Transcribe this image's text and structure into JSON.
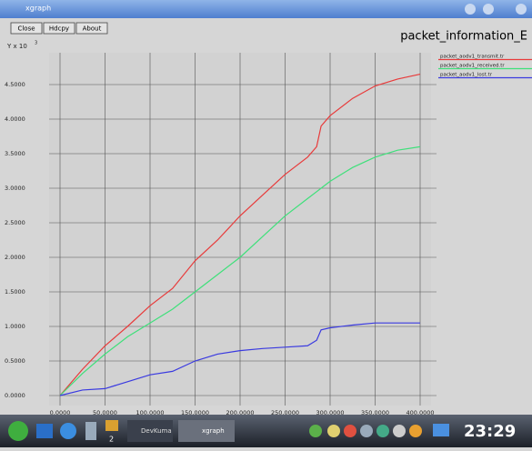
{
  "window": {
    "title": "xgraph",
    "buttons": [
      "Close",
      "Hdcpy",
      "About"
    ]
  },
  "chart_data": {
    "type": "line",
    "title": "packet_information_E",
    "ylabel": "Y x 10",
    "ylabel_exponent": "3",
    "x": [
      0,
      25,
      50,
      75,
      100,
      125,
      150,
      175,
      200,
      225,
      250,
      275,
      285,
      290,
      300,
      325,
      350,
      375,
      400
    ],
    "series": [
      {
        "name": "packet_aodv1_transmit.tr",
        "color": "#e83a3a",
        "values": [
          0,
          0.38,
          0.72,
          1.0,
          1.3,
          1.55,
          1.95,
          2.25,
          2.6,
          2.9,
          3.2,
          3.45,
          3.6,
          3.9,
          4.05,
          4.3,
          4.48,
          4.58,
          4.65
        ]
      },
      {
        "name": "packet_aodv1_received.tr",
        "color": "#3ee07a",
        "values": [
          0,
          0.32,
          0.6,
          0.85,
          1.05,
          1.25,
          1.5,
          1.75,
          2.0,
          2.3,
          2.6,
          2.85,
          2.95,
          3.0,
          3.1,
          3.3,
          3.45,
          3.55,
          3.6
        ]
      },
      {
        "name": "packet_aodv1_lost.tr",
        "color": "#3a3ae0",
        "values": [
          0,
          0.08,
          0.1,
          0.2,
          0.3,
          0.35,
          0.5,
          0.6,
          0.65,
          0.68,
          0.7,
          0.72,
          0.8,
          0.95,
          0.98,
          1.02,
          1.05,
          1.05,
          1.05
        ]
      }
    ],
    "xlim": [
      0,
      400
    ],
    "ylim": [
      0,
      4.9
    ],
    "xticks": [
      {
        "value": 0,
        "label": "0.0000"
      },
      {
        "value": 50,
        "label": "50.0000"
      },
      {
        "value": 100,
        "label": "100.0000"
      },
      {
        "value": 150,
        "label": "150.0000"
      },
      {
        "value": 200,
        "label": "200.0000"
      },
      {
        "value": 250,
        "label": "250.0000"
      },
      {
        "value": 300,
        "label": "300.0000"
      },
      {
        "value": 350,
        "label": "350.0000"
      },
      {
        "value": 400,
        "label": "400.0000"
      }
    ],
    "yticks": [
      {
        "value": 0,
        "label": "0.0000"
      },
      {
        "value": 0.5,
        "label": "0.5000"
      },
      {
        "value": 1,
        "label": "1.0000"
      },
      {
        "value": 1.5,
        "label": "1.5000"
      },
      {
        "value": 2,
        "label": "2.0000"
      },
      {
        "value": 2.5,
        "label": "2.5000"
      },
      {
        "value": 3,
        "label": "3.0000"
      },
      {
        "value": 3.5,
        "label": "3.5000"
      },
      {
        "value": 4,
        "label": "4.0000"
      },
      {
        "value": 4.5,
        "label": "4.5000"
      }
    ],
    "grid": true
  },
  "taskbar": {
    "desktop": "2",
    "tasks": [
      "DevKuma",
      "xgraph"
    ],
    "clock": "23:29"
  }
}
